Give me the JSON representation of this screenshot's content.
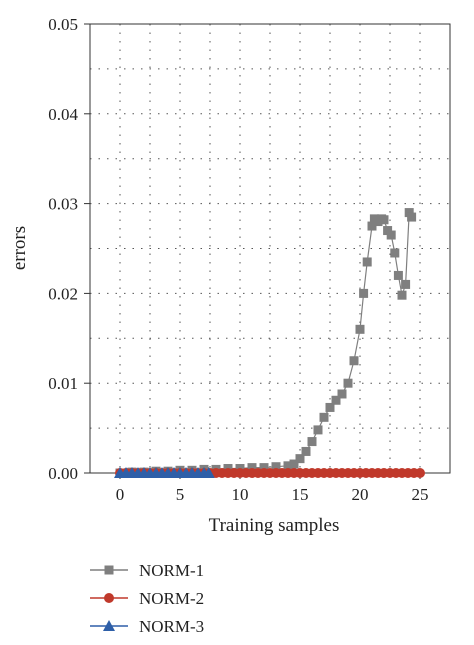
{
  "chart_data": {
    "type": "line",
    "xlabel": "Training samples",
    "ylabel": "errors",
    "xlim": [
      -2.5,
      27.5
    ],
    "ylim": [
      0,
      0.05
    ],
    "x_ticks": [
      0,
      5,
      10,
      15,
      20,
      25
    ],
    "x_tick_labels": [
      "0",
      "5",
      "10",
      "15",
      "20",
      "25"
    ],
    "y_ticks": [
      0,
      0.01,
      0.02,
      0.03,
      0.04,
      0.05
    ],
    "y_tick_labels": [
      "0.00",
      "0.01",
      "0.02",
      "0.03",
      "0.04",
      "0.05"
    ],
    "grid": true,
    "grid_style": "dotted",
    "legend_position": "bottom",
    "series": [
      {
        "name": "NORM-1",
        "color": "#7f7f7f",
        "marker": "square",
        "x": [
          0,
          1,
          2,
          3,
          4,
          5,
          6,
          7,
          8,
          9,
          10,
          11,
          12,
          13,
          14,
          14.5,
          15,
          15.5,
          16,
          16.5,
          17,
          17.5,
          18,
          18.5,
          19,
          19.5,
          20,
          20.3,
          20.6,
          21,
          21.2,
          21.5,
          21.8,
          22,
          22.3,
          22.6,
          22.9,
          23.2,
          23.5,
          23.8,
          24.1,
          24.3
        ],
        "y": [
          0,
          0.0001,
          0.0001,
          0.0002,
          0.0002,
          0.0003,
          0.0003,
          0.0004,
          0.0004,
          0.0005,
          0.0005,
          0.0006,
          0.0006,
          0.0007,
          0.0008,
          0.001,
          0.0016,
          0.0024,
          0.0035,
          0.0048,
          0.0062,
          0.0073,
          0.0081,
          0.0088,
          0.01,
          0.0125,
          0.016,
          0.02,
          0.0235,
          0.0275,
          0.0283,
          0.028,
          0.0283,
          0.0282,
          0.027,
          0.0265,
          0.0245,
          0.022,
          0.0198,
          0.021,
          0.029,
          0.0285
        ]
      },
      {
        "name": "NORM-2",
        "color": "#c0392b",
        "marker": "circle",
        "x": [
          0,
          0.5,
          1,
          1.5,
          2,
          2.5,
          3,
          3.5,
          4,
          4.5,
          5,
          5.5,
          6,
          6.5,
          7,
          7.5,
          8,
          8.5,
          9,
          9.5,
          10,
          10.5,
          11,
          11.5,
          12,
          12.5,
          13,
          13.5,
          14,
          14.5,
          15,
          15.5,
          16,
          16.5,
          17,
          17.5,
          18,
          18.5,
          19,
          19.5,
          20,
          20.5,
          21,
          21.5,
          22,
          22.5,
          23,
          23.5,
          24,
          24.5,
          25
        ],
        "y": [
          0,
          0,
          0,
          0,
          0,
          0,
          0,
          0,
          0,
          0,
          0,
          0,
          0,
          0,
          0,
          0,
          0,
          0,
          0,
          0,
          0,
          0,
          0,
          0,
          0,
          0,
          0,
          0,
          0,
          0,
          0,
          0,
          0,
          0,
          0,
          0,
          0,
          0,
          0,
          0,
          0,
          0,
          0,
          0,
          0,
          0,
          0,
          0,
          0,
          0,
          0
        ]
      },
      {
        "name": "NORM-3",
        "color": "#2e5fa8",
        "marker": "triangle",
        "x": [
          0,
          0.5,
          1,
          1.5,
          2,
          2.5,
          3,
          3.5,
          4,
          4.5,
          5,
          5.5,
          6,
          6.5,
          7,
          7.4
        ],
        "y": [
          0,
          0,
          0,
          0,
          0,
          0,
          0,
          0,
          0,
          0,
          0,
          0,
          0,
          0,
          0,
          0
        ]
      }
    ]
  }
}
